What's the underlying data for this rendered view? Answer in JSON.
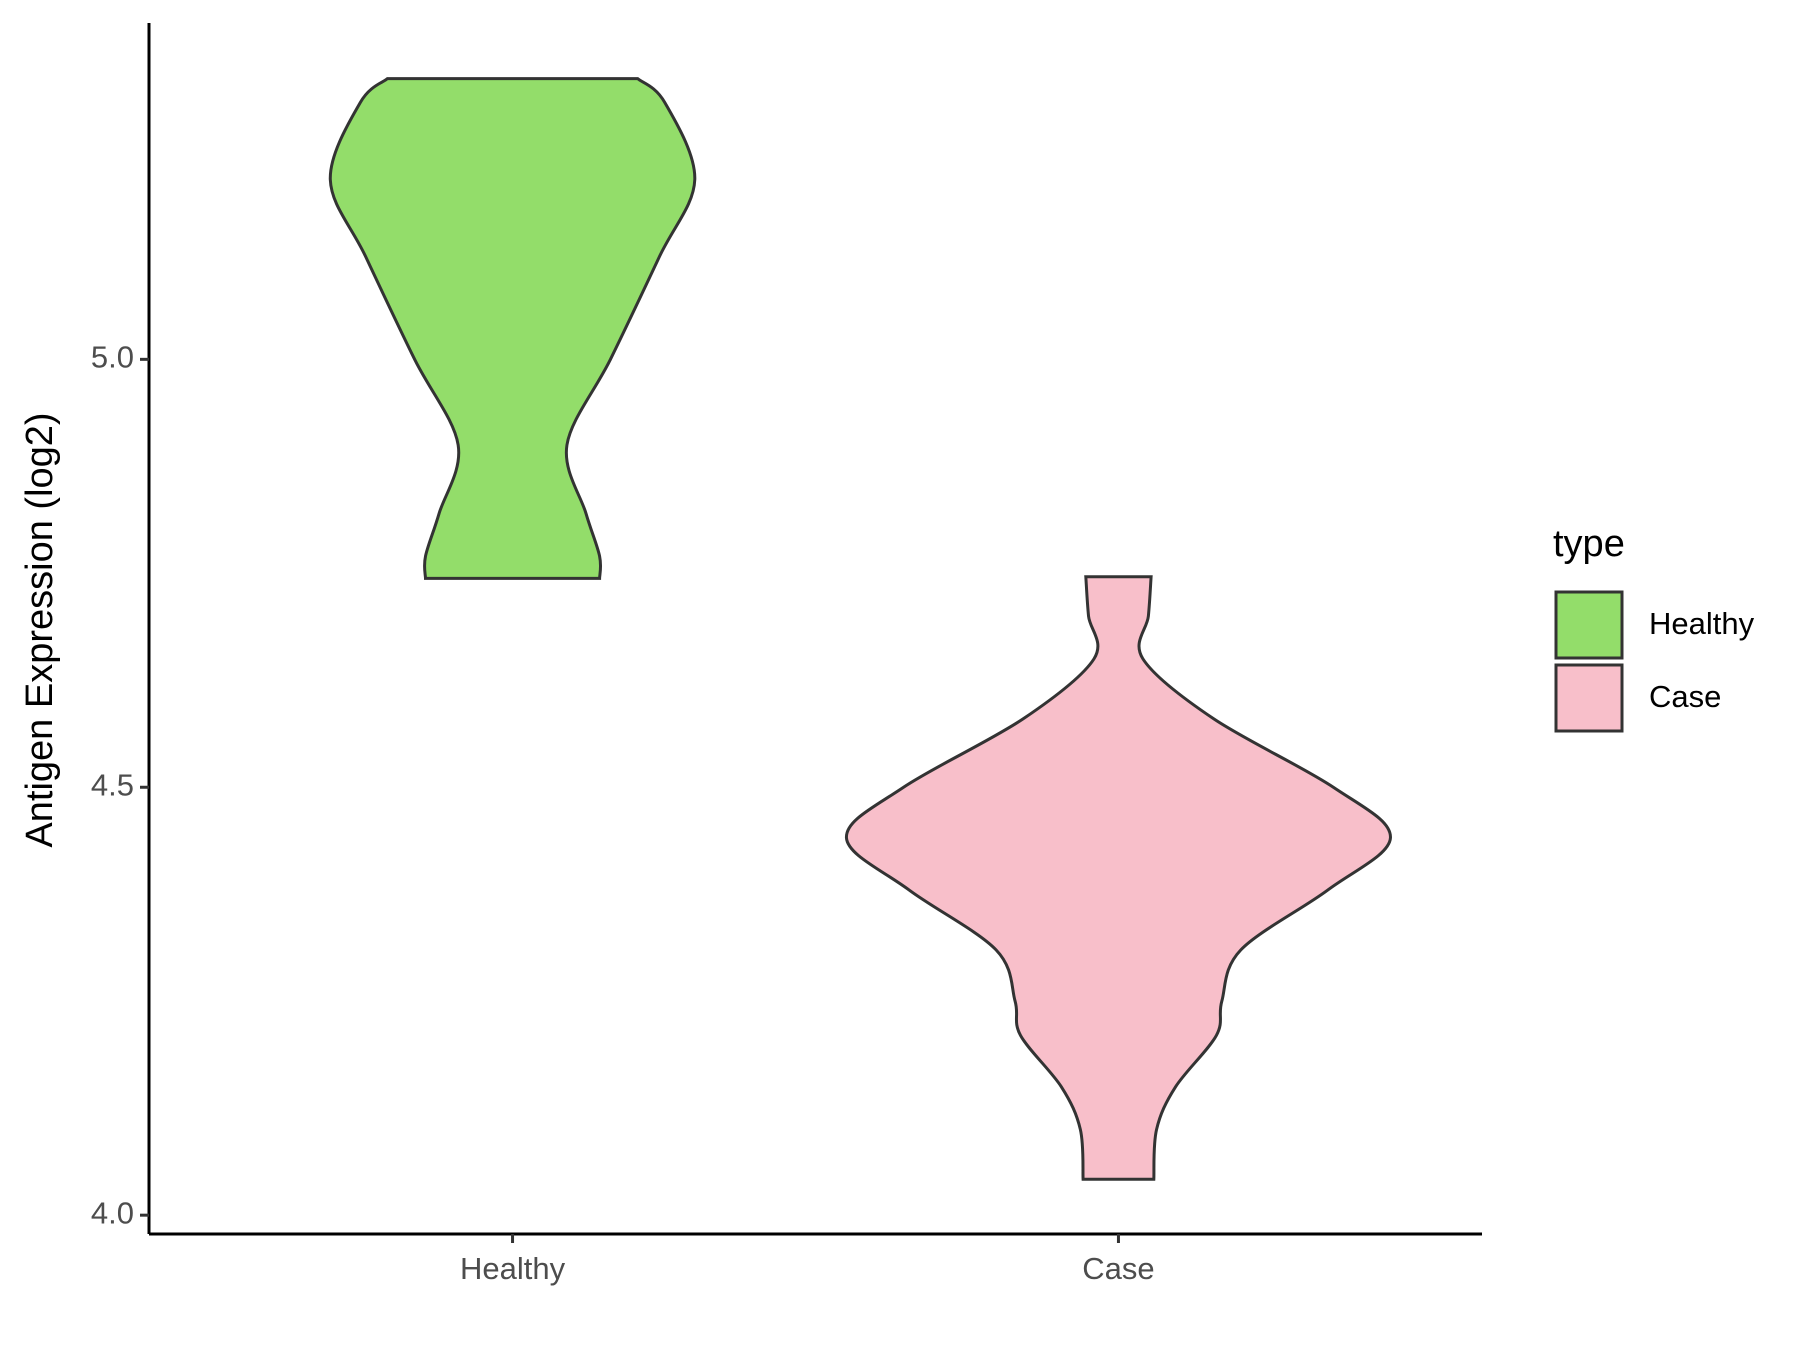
{
  "chart_data": {
    "type": "violin",
    "y_label": "Antigen Expression (log2)",
    "categories": [
      "Healthy",
      "Case"
    ],
    "legend_title": "type",
    "series": [
      {
        "name": "Healthy",
        "color": "#93dd6a",
        "y": [
          5.328,
          5.3,
          5.21,
          5.12,
          5.0,
          4.9,
          4.82,
          4.77,
          4.744
        ],
        "density": [
          0.46,
          0.56,
          0.67,
          0.54,
          0.36,
          0.2,
          0.27,
          0.32,
          0.32
        ]
      },
      {
        "name": "Case",
        "color": "#f8bfca",
        "y": [
          4.746,
          4.7,
          4.65,
          4.58,
          4.5,
          4.441,
          4.38,
          4.31,
          4.25,
          4.21,
          4.15,
          4.1,
          4.042
        ],
        "density": [
          0.12,
          0.11,
          0.09,
          0.35,
          0.79,
          1.0,
          0.77,
          0.45,
          0.38,
          0.36,
          0.21,
          0.14,
          0.13
        ]
      }
    ],
    "ylim": [
      3.978,
      5.393
    ],
    "yticks": [
      {
        "value": 4,
        "label": "4.0"
      },
      {
        "value": 4.5,
        "label": "4.5"
      },
      {
        "value": 5,
        "label": "5.0"
      }
    ]
  }
}
